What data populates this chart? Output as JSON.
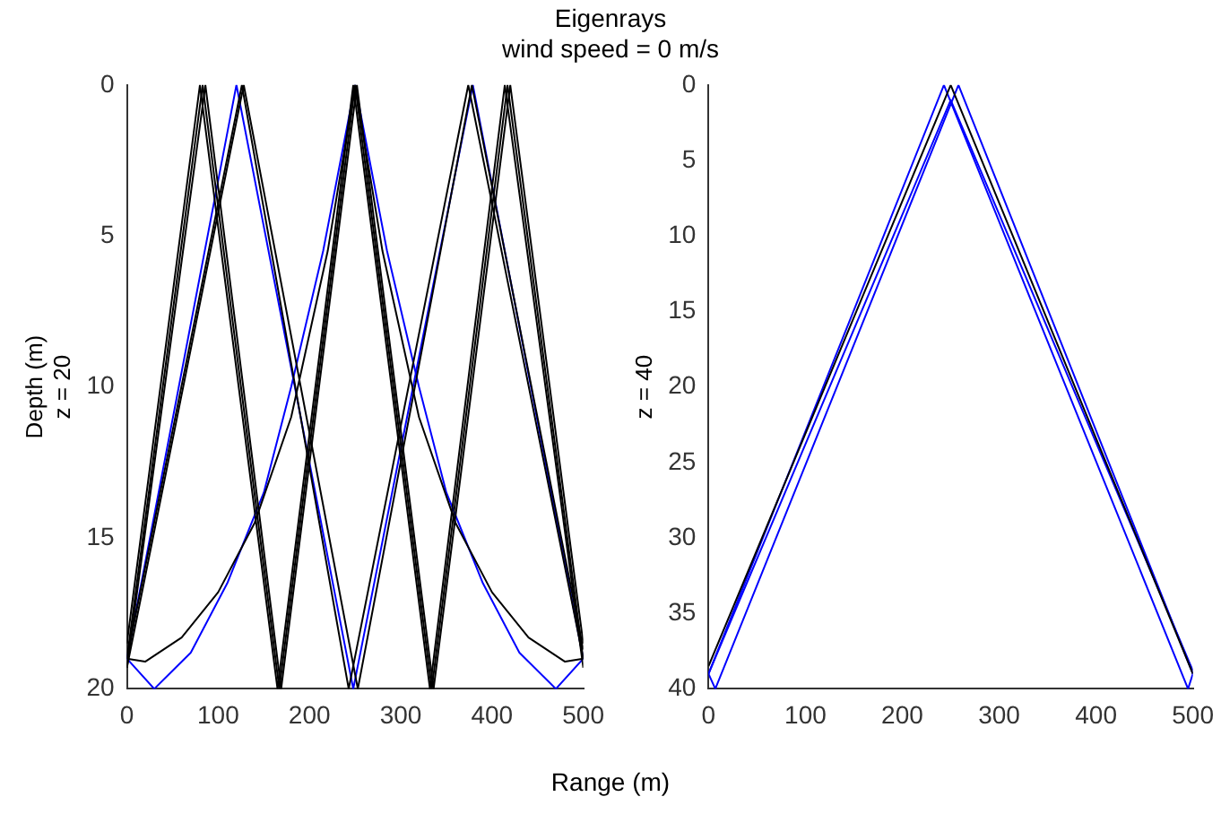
{
  "chart_data": [
    {
      "type": "line",
      "title": "Eigenrays",
      "subtitle": "wind speed = 0 m/s",
      "xlabel": "Range (m)",
      "ylabel": "Depth (m)\nz = 20",
      "xlim": [
        0,
        500
      ],
      "ylim": [
        20,
        0
      ],
      "xticks": [
        0,
        100,
        200,
        300,
        400,
        500
      ],
      "yticks": [
        0,
        5,
        10,
        15,
        20
      ],
      "grid": false,
      "legend": false,
      "series": [
        {
          "color": "#000000",
          "x": [
            0,
            83,
            167,
            250,
            334,
            417,
            500
          ],
          "values": [
            19,
            0,
            20,
            0,
            20,
            0,
            19
          ]
        },
        {
          "color": "#000000",
          "x": [
            0,
            80,
            165,
            248,
            332,
            414,
            500
          ],
          "values": [
            18.5,
            0,
            20,
            0,
            20,
            0,
            19.3
          ]
        },
        {
          "color": "#000000",
          "x": [
            0,
            86,
            169,
            252,
            336,
            420,
            500
          ],
          "values": [
            19.3,
            0,
            20,
            0,
            20,
            0,
            18.5
          ]
        },
        {
          "color": "#000000",
          "x": [
            0,
            126,
            243,
            374,
            500
          ],
          "values": [
            19,
            0,
            20,
            0,
            19
          ]
        },
        {
          "color": "#000000",
          "x": [
            0,
            128,
            253,
            378,
            500
          ],
          "values": [
            19.3,
            0,
            20,
            0,
            18.7
          ]
        },
        {
          "color": "#000000",
          "x": [
            0,
            20,
            60,
            100,
            140,
            180,
            220,
            250,
            280,
            320,
            360,
            400,
            440,
            480,
            500
          ],
          "values": [
            19,
            19.1,
            18.3,
            16.8,
            14.5,
            11,
            5.5,
            0,
            5.5,
            11,
            14.5,
            16.8,
            18.3,
            19.1,
            19
          ]
        },
        {
          "color": "#0000ff",
          "x": [
            0,
            30,
            70,
            110,
            150,
            180,
            215,
            250,
            285,
            320,
            350,
            390,
            430,
            470,
            500
          ],
          "values": [
            19,
            20,
            18.8,
            16.5,
            13.5,
            10,
            5.5,
            0,
            5.5,
            10,
            13.5,
            16.5,
            18.8,
            20,
            19
          ]
        },
        {
          "color": "#0000ff",
          "x": [
            0,
            120,
            248,
            379,
            500
          ],
          "values": [
            19,
            0,
            20,
            0,
            19
          ]
        }
      ]
    },
    {
      "type": "line",
      "ylabel": "z = 40",
      "xlim": [
        0,
        500
      ],
      "ylim": [
        40,
        0
      ],
      "xticks": [
        0,
        100,
        200,
        300,
        400,
        500
      ],
      "yticks": [
        0,
        5,
        10,
        15,
        20,
        25,
        30,
        35,
        40
      ],
      "grid": false,
      "legend": false,
      "series": [
        {
          "color": "#000000",
          "x": [
            0,
            250,
            500
          ],
          "values": [
            38.5,
            0,
            39
          ]
        },
        {
          "color": "#0000ff",
          "x": [
            0,
            243,
            495,
            500
          ],
          "values": [
            39,
            0,
            40,
            39
          ]
        },
        {
          "color": "#0000ff",
          "x": [
            0,
            7,
            258,
            500
          ],
          "values": [
            39,
            40,
            0,
            39
          ]
        },
        {
          "color": "#0000ff",
          "x": [
            0,
            250,
            500
          ],
          "values": [
            39,
            1,
            38.8
          ]
        }
      ]
    }
  ]
}
